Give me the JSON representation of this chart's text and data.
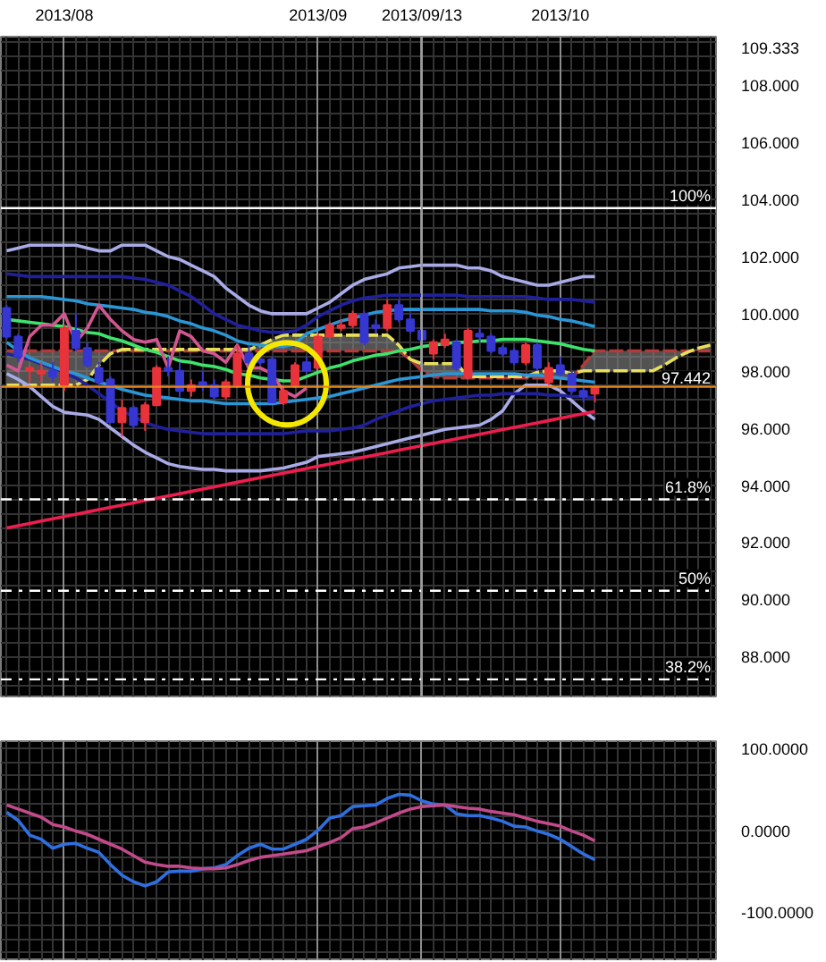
{
  "chart_data": [
    {
      "type": "candlestick",
      "categories": [
        null,
        null,
        null,
        null,
        null,
        "2013/08",
        null,
        null,
        null,
        null,
        null,
        null,
        null,
        null,
        null,
        null,
        null,
        null,
        null,
        null,
        null,
        null,
        null,
        null,
        null,
        null,
        null,
        "2013/09",
        null,
        null,
        null,
        null,
        null,
        null,
        null,
        null,
        "2013/09/13",
        null,
        null,
        null,
        null,
        null,
        null,
        null,
        null,
        null,
        null,
        null,
        "2013/10",
        null,
        null,
        null,
        null,
        null,
        null,
        null,
        null,
        null,
        null,
        null,
        null,
        null
      ],
      "ohlc": [
        [
          100.2,
          100.3,
          99.1,
          99.2
        ],
        [
          99.2,
          99.3,
          98.3,
          98.5
        ],
        [
          98.0,
          98.2,
          97.6,
          98.1
        ],
        [
          97.9,
          98.3,
          97.6,
          98.0
        ],
        [
          98.0,
          98.3,
          97.6,
          97.8
        ],
        [
          97.5,
          99.6,
          97.3,
          99.5
        ],
        [
          99.4,
          100.0,
          98.7,
          98.8
        ],
        [
          98.8,
          99.0,
          98.1,
          98.2
        ],
        [
          98.1,
          98.3,
          97.5,
          97.6
        ],
        [
          97.7,
          97.8,
          96.2,
          96.2
        ],
        [
          96.2,
          97.0,
          95.7,
          96.7
        ],
        [
          96.7,
          96.8,
          96.0,
          96.1
        ],
        [
          96.2,
          96.9,
          95.9,
          96.8
        ],
        [
          96.8,
          98.2,
          96.8,
          98.1
        ],
        [
          98.1,
          98.5,
          97.8,
          98.0
        ],
        [
          98.0,
          98.3,
          97.1,
          97.3
        ],
        [
          97.3,
          97.7,
          97.1,
          97.5
        ],
        [
          97.6,
          98.0,
          97.3,
          97.5
        ],
        [
          97.5,
          97.7,
          97.0,
          97.1
        ],
        [
          97.1,
          97.7,
          97.0,
          97.6
        ],
        [
          97.5,
          98.9,
          97.4,
          98.6
        ],
        [
          98.6,
          98.9,
          98.1,
          98.3
        ],
        [
          98.4,
          98.6,
          98.2,
          98.3
        ],
        [
          98.4,
          98.5,
          96.9,
          96.9
        ],
        [
          96.9,
          97.5,
          96.8,
          97.3
        ],
        [
          97.5,
          98.3,
          97.4,
          98.2
        ],
        [
          98.3,
          98.5,
          97.9,
          98.0
        ],
        [
          98.1,
          99.3,
          98.1,
          99.2
        ],
        [
          99.2,
          99.7,
          99.2,
          99.6
        ],
        [
          99.5,
          99.8,
          99.4,
          99.6
        ],
        [
          99.6,
          100.1,
          99.5,
          100.0
        ],
        [
          100.0,
          100.1,
          98.9,
          99.0
        ],
        [
          99.6,
          99.8,
          99.3,
          99.5
        ],
        [
          99.5,
          100.5,
          99.4,
          100.3
        ],
        [
          100.3,
          100.5,
          99.7,
          99.8
        ],
        [
          99.8,
          100.0,
          99.3,
          99.4
        ],
        [
          99.4,
          99.5,
          99.0,
          99.1
        ],
        [
          98.6,
          99.1,
          98.4,
          99.0
        ],
        [
          98.9,
          99.3,
          98.8,
          99.1
        ],
        [
          99.0,
          99.1,
          98.0,
          98.1
        ],
        [
          97.8,
          99.5,
          97.7,
          99.4
        ],
        [
          99.3,
          99.5,
          99.0,
          99.2
        ],
        [
          99.2,
          99.3,
          98.6,
          98.7
        ],
        [
          98.8,
          98.9,
          98.5,
          98.6
        ],
        [
          98.7,
          98.8,
          98.2,
          98.3
        ],
        [
          98.3,
          99.0,
          98.2,
          98.9
        ],
        [
          98.9,
          99.0,
          98.0,
          98.1
        ],
        [
          97.6,
          98.3,
          97.5,
          98.1
        ],
        [
          98.2,
          98.5,
          97.8,
          97.9
        ],
        [
          97.9,
          98.0,
          97.2,
          97.3
        ],
        [
          97.3,
          97.4,
          96.9,
          97.1
        ],
        [
          97.2,
          97.5,
          96.9,
          97.4
        ],
        null,
        null,
        null,
        null,
        null,
        null,
        null,
        null,
        null,
        null
      ],
      "colors": [
        "#3636d0",
        "#3636d0",
        "#e8333a",
        "#e8333a",
        "#3636d0",
        "#e8333a",
        "#3636d0",
        "#3636d0",
        "#3636d0",
        "#3636d0",
        "#e8333a",
        "#3636d0",
        "#e8333a",
        "#e8333a",
        "#3636d0",
        "#3636d0",
        "#e8333a",
        "#3636d0",
        "#3636d0",
        "#e8333a",
        "#e8333a",
        "#3636d0",
        "#3636d0",
        "#3636d0",
        "#e8333a",
        "#e8333a",
        "#3636d0",
        "#e8333a",
        "#e8333a",
        "#e8333a",
        "#e8333a",
        "#3636d0",
        "#3636d0",
        "#e8333a",
        "#3636d0",
        "#3636d0",
        "#3636d0",
        "#e8333a",
        "#e8333a",
        "#3636d0",
        "#e8333a",
        "#3636d0",
        "#3636d0",
        "#3636d0",
        "#3636d0",
        "#e8333a",
        "#3636d0",
        "#e8333a",
        "#3636d0",
        "#3636d0",
        "#3636d0",
        "#e8333a",
        null,
        null,
        null,
        null,
        null,
        null,
        null,
        null,
        null,
        null
      ],
      "series": [
        {
          "type": "line",
          "color": "#b33a3a",
          "line_style": "dashed",
          "values": [
            98.7,
            98.7,
            98.7,
            98.7,
            98.7,
            98.7,
            98.7,
            98.7,
            98.7,
            98.7,
            98.7,
            98.7,
            98.7,
            98.7,
            98.7,
            98.7,
            98.7,
            98.7,
            98.7,
            98.7,
            98.7,
            98.7,
            98.7,
            98.7,
            98.7,
            98.7,
            98.7,
            98.7,
            98.7,
            98.7,
            98.7,
            98.7,
            98.7,
            98.7,
            98.7,
            98.4,
            98.0,
            97.8,
            97.75,
            97.75,
            97.75,
            97.75,
            97.75,
            97.75,
            97.75,
            97.75,
            97.75,
            97.75,
            97.75,
            97.75,
            98.2,
            98.7,
            98.7,
            98.7,
            98.7,
            98.7,
            98.7,
            98.7,
            98.7,
            98.7,
            98.7,
            98.7
          ]
        },
        {
          "type": "line",
          "color": "#e6df5c",
          "line_style": "dashed",
          "values": [
            97.5,
            97.5,
            97.5,
            97.5,
            97.5,
            97.5,
            97.5,
            97.7,
            98.2,
            98.6,
            98.75,
            98.75,
            98.75,
            98.75,
            98.75,
            98.75,
            98.75,
            98.75,
            98.75,
            98.75,
            98.75,
            98.75,
            98.9,
            99.1,
            99.25,
            99.25,
            99.25,
            99.25,
            99.25,
            99.25,
            99.25,
            99.25,
            99.25,
            99.25,
            98.9,
            98.4,
            98.25,
            98.25,
            98.25,
            98.25,
            97.8,
            97.8,
            97.8,
            97.8,
            97.8,
            97.8,
            97.95,
            98.0,
            98.0,
            97.9,
            98.0,
            98.0,
            98.0,
            98.0,
            98.0,
            98.0,
            98.0,
            98.2,
            98.45,
            98.65,
            98.8,
            98.9
          ],
          "lower": [
            98.7,
            98.7,
            98.7,
            98.7,
            98.7,
            98.7,
            98.7,
            98.7,
            98.7,
            98.7,
            98.7,
            98.7,
            98.7,
            98.7,
            98.7,
            98.7,
            98.7,
            98.7,
            98.7,
            98.7,
            98.7,
            98.7,
            98.7,
            98.7,
            98.7,
            98.7,
            98.7,
            98.7,
            98.7,
            98.7,
            98.7,
            98.7,
            98.7,
            98.7,
            98.7,
            98.4,
            98.0,
            97.8,
            97.75,
            97.75,
            97.75,
            97.75,
            97.75,
            97.75,
            97.75,
            97.75,
            97.75,
            97.75,
            97.75,
            97.75,
            98.2,
            98.7,
            98.7,
            98.7,
            98.7,
            98.7,
            98.7,
            98.7,
            98.7,
            98.7,
            98.7,
            98.7
          ],
          "upper": [
            97.5,
            97.5,
            97.5,
            97.5,
            97.5,
            97.5,
            97.5,
            97.7,
            98.2,
            98.6,
            98.75,
            98.75,
            98.75,
            98.75,
            98.75,
            98.75,
            98.75,
            98.75,
            98.75,
            98.75,
            98.75,
            98.75,
            98.9,
            99.1,
            99.25,
            99.25,
            99.25,
            99.25,
            99.25,
            99.25,
            99.25,
            99.25,
            99.25,
            99.25,
            98.9,
            98.4,
            98.25,
            98.25,
            98.25,
            98.25,
            97.8,
            97.8,
            97.8,
            97.8,
            97.8,
            97.8,
            97.95,
            98.0,
            98.0,
            97.9,
            98.0,
            98.0,
            98.0,
            98.0,
            98.0,
            98.0,
            98.0,
            98.2,
            98.45,
            98.65,
            98.8,
            98.9
          ]
        },
        {
          "type": "line",
          "color": "#a9abe6",
          "values": [
            102.2,
            102.3,
            102.4,
            102.4,
            102.4,
            102.4,
            102.4,
            102.3,
            102.2,
            102.2,
            102.4,
            102.4,
            102.4,
            102.2,
            102.0,
            101.9,
            101.7,
            101.5,
            101.3,
            100.9,
            100.6,
            100.3,
            100.1,
            100.0,
            100.0,
            100.0,
            100.0,
            100.2,
            100.4,
            100.7,
            101.0,
            101.2,
            101.3,
            101.4,
            101.6,
            101.65,
            101.7,
            101.7,
            101.7,
            101.7,
            101.6,
            101.6,
            101.5,
            101.3,
            101.2,
            101.1,
            101.0,
            101.0,
            101.1,
            101.2,
            101.3,
            101.3,
            null,
            null,
            null,
            null,
            null,
            null,
            null,
            null,
            null,
            null
          ]
        },
        {
          "type": "line",
          "color": "#a9abe6",
          "values": [
            97.9,
            97.7,
            97.45,
            97.1,
            96.75,
            96.55,
            96.5,
            96.45,
            96.3,
            96.0,
            95.7,
            95.4,
            95.15,
            94.95,
            94.75,
            94.65,
            94.6,
            94.55,
            94.55,
            94.5,
            94.5,
            94.5,
            94.5,
            94.55,
            94.6,
            94.7,
            94.8,
            95.0,
            95.05,
            95.1,
            95.15,
            95.25,
            95.35,
            95.45,
            95.55,
            95.65,
            95.75,
            95.85,
            95.95,
            96.0,
            96.05,
            96.1,
            96.3,
            96.6,
            97.2,
            97.5,
            97.5,
            97.5,
            97.3,
            96.95,
            96.6,
            96.3,
            null,
            null,
            null,
            null,
            null,
            null,
            null,
            null,
            null,
            null
          ]
        },
        {
          "type": "line",
          "color": "#20209a",
          "values": [
            101.4,
            101.35,
            101.3,
            101.3,
            101.3,
            101.3,
            101.3,
            101.3,
            101.3,
            101.3,
            101.3,
            101.25,
            101.2,
            101.1,
            101.0,
            100.8,
            100.6,
            100.3,
            100.0,
            99.8,
            99.6,
            99.5,
            99.4,
            99.35,
            99.35,
            99.4,
            99.6,
            99.9,
            100.1,
            100.3,
            100.45,
            100.55,
            100.6,
            100.65,
            100.65,
            100.65,
            100.65,
            100.65,
            100.65,
            100.65,
            100.6,
            100.6,
            100.6,
            100.6,
            100.6,
            100.6,
            100.55,
            100.5,
            100.5,
            100.5,
            100.45,
            100.4,
            null,
            null,
            null,
            null,
            null,
            null,
            null,
            null,
            null,
            null
          ]
        },
        {
          "type": "line",
          "color": "#20209a",
          "values": [
            98.6,
            98.5,
            98.4,
            98.25,
            98.1,
            97.95,
            97.75,
            97.5,
            97.2,
            96.9,
            96.6,
            96.4,
            96.2,
            96.05,
            95.95,
            95.9,
            95.85,
            95.8,
            95.8,
            95.8,
            95.8,
            95.8,
            95.8,
            95.8,
            95.8,
            95.85,
            95.9,
            95.9,
            95.9,
            95.95,
            96.0,
            96.1,
            96.3,
            96.45,
            96.6,
            96.75,
            96.85,
            96.95,
            97.0,
            97.05,
            97.1,
            97.15,
            97.15,
            97.2,
            97.2,
            97.2,
            97.2,
            97.15,
            97.15,
            97.1,
            97.1,
            97.05,
            null,
            null,
            null,
            null,
            null,
            null,
            null,
            null,
            null,
            null
          ]
        },
        {
          "type": "line",
          "color": "#2b96d6",
          "values": [
            100.6,
            100.6,
            100.6,
            100.6,
            100.55,
            100.5,
            100.45,
            100.35,
            100.3,
            100.25,
            100.2,
            100.15,
            100.05,
            100.0,
            99.9,
            99.75,
            99.65,
            99.5,
            99.4,
            99.25,
            99.05,
            98.95,
            98.9,
            98.85,
            98.85,
            98.95,
            99.3,
            99.45,
            99.6,
            99.75,
            99.85,
            99.95,
            100.05,
            100.1,
            100.15,
            100.15,
            100.15,
            100.15,
            100.15,
            100.15,
            100.15,
            100.15,
            100.1,
            100.1,
            100.1,
            100.05,
            99.95,
            99.9,
            99.8,
            99.75,
            99.65,
            99.55,
            null,
            null,
            null,
            null,
            null,
            null,
            null,
            null,
            null,
            null
          ]
        },
        {
          "type": "line",
          "color": "#2b96d6",
          "values": [
            99.0,
            98.7,
            98.45,
            98.3,
            98.15,
            98.0,
            97.9,
            97.75,
            97.6,
            97.5,
            97.35,
            97.25,
            97.15,
            97.1,
            97.05,
            97.0,
            96.95,
            96.95,
            96.9,
            96.85,
            96.85,
            96.85,
            96.85,
            96.85,
            96.9,
            96.95,
            97.0,
            97.05,
            97.1,
            97.2,
            97.3,
            97.4,
            97.5,
            97.6,
            97.7,
            97.75,
            97.8,
            97.85,
            97.9,
            97.9,
            97.9,
            97.9,
            97.9,
            97.9,
            97.9,
            97.85,
            97.85,
            97.8,
            97.75,
            97.7,
            97.65,
            97.6,
            null,
            null,
            null,
            null,
            null,
            null,
            null,
            null,
            null,
            null
          ]
        },
        {
          "type": "line",
          "color": "#3fe36b",
          "values": [
            99.8,
            99.75,
            99.7,
            99.65,
            99.6,
            99.55,
            99.45,
            99.35,
            99.3,
            99.15,
            99.05,
            98.9,
            98.75,
            98.65,
            98.5,
            98.35,
            98.3,
            98.2,
            98.15,
            98.05,
            97.9,
            97.85,
            97.75,
            97.7,
            97.65,
            97.65,
            97.8,
            97.95,
            98.1,
            98.2,
            98.35,
            98.45,
            98.55,
            98.6,
            98.7,
            98.75,
            98.85,
            98.9,
            98.95,
            99.0,
            99.0,
            99.05,
            99.05,
            99.1,
            99.1,
            99.1,
            99.05,
            99.0,
            98.95,
            98.85,
            98.75,
            98.7,
            null,
            null,
            null,
            null,
            null,
            null,
            null,
            null,
            null,
            null
          ]
        },
        {
          "type": "line",
          "color": "#d2568f",
          "values": [
            98.2,
            98.0,
            99.2,
            99.6,
            99.6,
            100.0,
            99.0,
            99.5,
            100.3,
            99.8,
            99.4,
            99.1,
            99.0,
            99.1,
            98.1,
            99.4,
            99.2,
            98.7,
            98.6,
            98.3,
            98.9,
            98.1,
            98.1,
            97.9,
            97.3,
            97.1,
            97.4,
            null,
            null,
            null,
            null,
            null,
            null,
            null,
            null,
            null,
            null,
            null,
            null,
            null,
            null,
            null,
            null,
            null,
            null,
            null,
            null,
            null,
            null,
            null,
            null,
            null,
            null,
            null,
            null,
            null,
            null,
            null,
            null,
            null,
            null,
            null
          ]
        },
        {
          "type": "line",
          "color": "#ee1d4f",
          "values": [
            92.5,
            92.58,
            92.66,
            92.74,
            92.82,
            92.9,
            92.98,
            93.06,
            93.14,
            93.22,
            93.3,
            93.38,
            93.46,
            93.54,
            93.62,
            93.7,
            93.78,
            93.86,
            93.94,
            94.02,
            94.1,
            94.18,
            94.26,
            94.34,
            94.42,
            94.5,
            94.58,
            94.66,
            94.74,
            94.82,
            94.9,
            94.98,
            95.06,
            95.14,
            95.22,
            95.3,
            95.38,
            95.46,
            95.54,
            95.62,
            95.7,
            95.78,
            95.86,
            95.94,
            96.02,
            96.1,
            96.18,
            96.26,
            96.34,
            96.42,
            96.5,
            96.58,
            null,
            null,
            null,
            null,
            null,
            null,
            null,
            null,
            null,
            null
          ]
        }
      ],
      "ylim": [
        86.6,
        109.7
      ],
      "yticks": [
        {
          "value": 88,
          "label": "88.000"
        },
        {
          "value": 90,
          "label": "90.000"
        },
        {
          "value": 92,
          "label": "92.000"
        },
        {
          "value": 94,
          "label": "94.000"
        },
        {
          "value": 96,
          "label": "96.000"
        },
        {
          "value": 98,
          "label": "98.000"
        },
        {
          "value": 100,
          "label": "100.000"
        },
        {
          "value": 102,
          "label": "102.000"
        },
        {
          "value": 104,
          "label": "104.000"
        },
        {
          "value": 106,
          "label": "106.000"
        },
        {
          "value": 108,
          "label": "108.000"
        },
        109.333
      ],
      "ref_lines": [
        {
          "axis": "y",
          "value": 103.7,
          "color": "#ffffff",
          "line_style": "solid"
        },
        {
          "axis": "y",
          "value": 93.5,
          "color": "#ffffff",
          "line_style": "dashdot"
        },
        {
          "axis": "y",
          "value": 90.3,
          "color": "#ffffff",
          "line_style": "dashdot"
        },
        {
          "axis": "y",
          "value": 87.2,
          "color": "#ffffff",
          "line_style": "dashdot"
        },
        {
          "axis": "y",
          "value": 97.442,
          "label": "97.442",
          "color": "#e8891e",
          "line_style": "solid"
        },
        {
          "axis": "x",
          "value": "2013/09/13",
          "color": "#9a9a9a",
          "line_style": "solid"
        }
      ],
      "annotations": [
        {
          "text": "100%",
          "y": 103.7
        },
        {
          "text": "61.8%",
          "y": 93.5
        },
        {
          "text": "50%",
          "y": 90.3
        },
        {
          "text": "38.2%",
          "y": 87.2
        }
      ],
      "grid": true
    },
    {
      "type": "line",
      "categories": [
        null,
        null,
        null,
        null,
        null,
        "2013/08",
        null,
        null,
        null,
        null,
        null,
        null,
        null,
        null,
        null,
        null,
        null,
        null,
        null,
        null,
        null,
        null,
        null,
        null,
        null,
        null,
        null,
        "2013/09",
        null,
        null,
        null,
        null,
        null,
        null,
        null,
        null,
        "2013/09/13",
        null,
        null,
        null,
        null,
        null,
        null,
        null,
        null,
        null,
        null,
        null,
        "2013/10",
        null,
        null,
        null,
        null,
        null,
        null,
        null,
        null,
        null,
        null,
        null,
        null,
        null
      ],
      "series": [
        {
          "color": "#2f6fe0",
          "values": [
            22,
            12,
            -6,
            -11,
            -22,
            -17,
            -16,
            -22,
            -27,
            -42,
            -55,
            -63,
            -68,
            -63,
            -51,
            -50,
            -50,
            -47,
            -46,
            -42,
            -31,
            -22,
            -17,
            -23,
            -23,
            -17,
            -11,
            0,
            15,
            18,
            29,
            30,
            31,
            39,
            44,
            43,
            36,
            32,
            31,
            20,
            18,
            18,
            15,
            11,
            5,
            4,
            -1,
            -5,
            -11,
            -20,
            -29,
            -36,
            null,
            null,
            null,
            null,
            null,
            null,
            null,
            null,
            null,
            null
          ]
        },
        {
          "color": "#c24a8a",
          "values": [
            31,
            26,
            21,
            16,
            7,
            4,
            -1,
            -5,
            -11,
            -17,
            -23,
            -31,
            -39,
            -42,
            -44,
            -44,
            -46,
            -47,
            -47,
            -46,
            -42,
            -37,
            -33,
            -31,
            -29,
            -27,
            -25,
            -20,
            -15,
            -9,
            2,
            4,
            9,
            15,
            21,
            26,
            29,
            30,
            31,
            29,
            27,
            26,
            23,
            21,
            19,
            15,
            11,
            8,
            5,
            -1,
            -6,
            -13,
            null,
            null,
            null,
            null,
            null,
            null,
            null,
            null,
            null,
            null
          ]
        }
      ],
      "ylim": [
        -160,
        109
      ],
      "yticks": [
        {
          "value": 100,
          "label": "100.0000"
        },
        {
          "value": 0,
          "label": "0.0000"
        },
        {
          "value": -100,
          "label": "-100.0000"
        }
      ],
      "tick_labels": "y",
      "grid": true
    }
  ]
}
